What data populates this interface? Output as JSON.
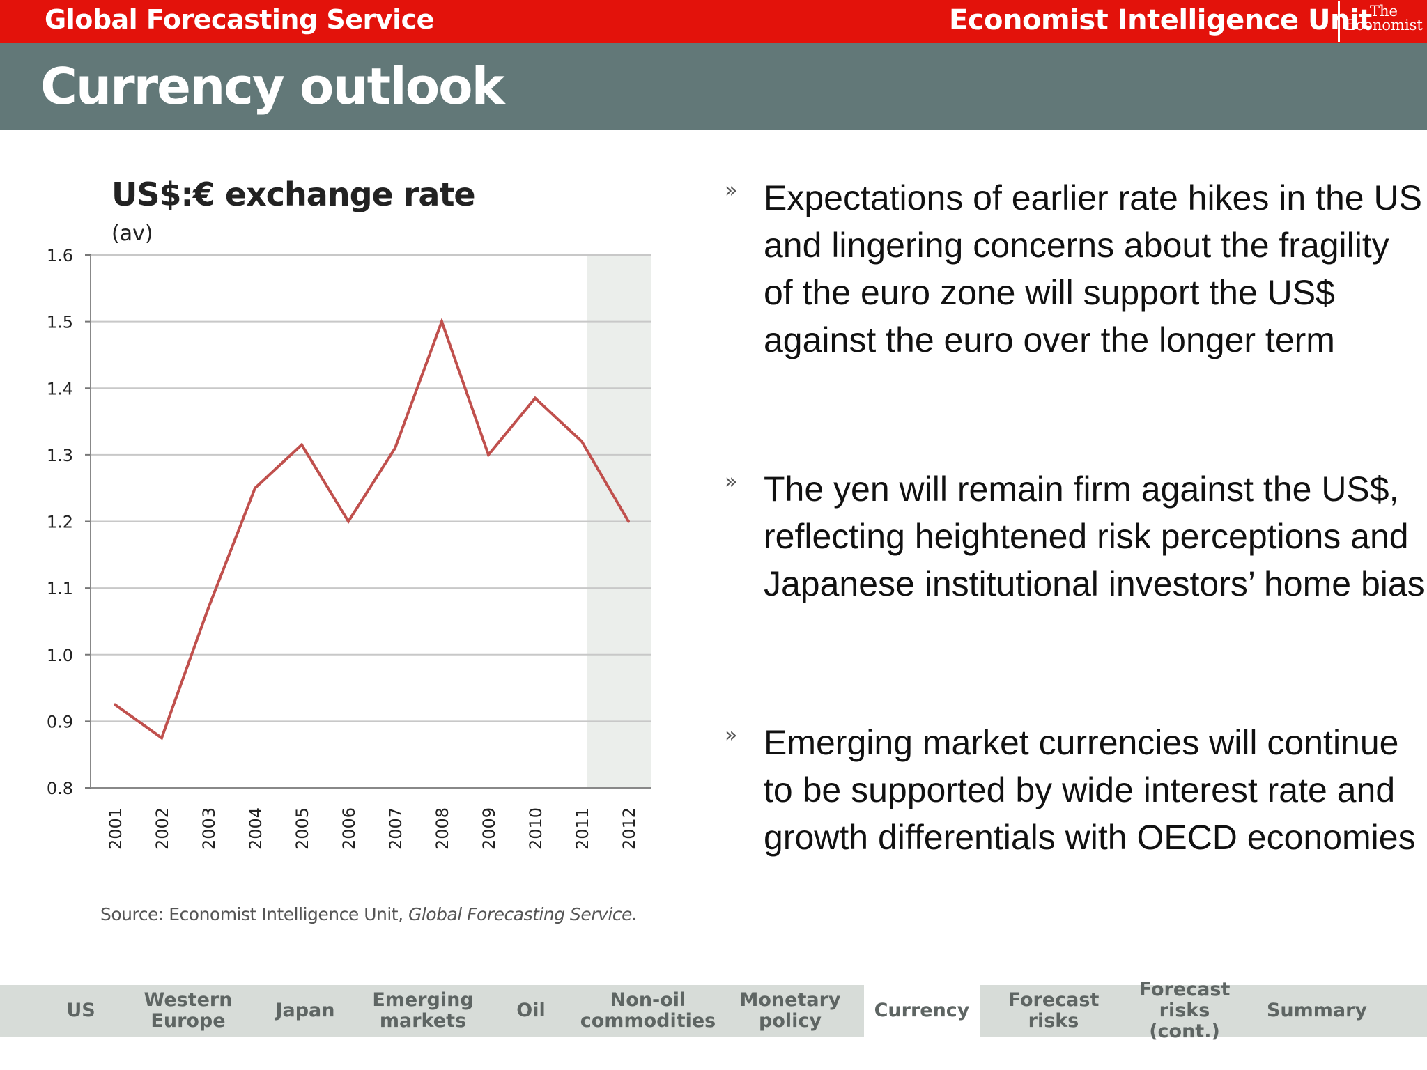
{
  "header": {
    "service": "Global Forecasting Service",
    "brand": "Economist Intelligence Unit",
    "logo_line1": "The",
    "logo_line2": "Economist"
  },
  "page_title": "Currency outlook",
  "chart_data": {
    "type": "line",
    "title": "US$:€ exchange rate",
    "subtitle": "(av)",
    "x": [
      "2001",
      "2002",
      "2003",
      "2004",
      "2005",
      "2006",
      "2007",
      "2008",
      "2009",
      "2010",
      "2011",
      "2012"
    ],
    "series": [
      {
        "values": [
          0.925,
          0.875,
          1.07,
          1.25,
          1.315,
          1.2,
          1.31,
          1.5,
          1.3,
          1.385,
          1.32,
          1.2
        ]
      }
    ],
    "ylim": [
      0.8,
      1.6
    ],
    "yticks": [
      "0.8",
      "0.9",
      "1.0",
      "1.1",
      "1.2",
      "1.3",
      "1.4",
      "1.5",
      "1.6"
    ],
    "forecast_shade_from": "2011",
    "line_color": "#c0504d",
    "grid": true,
    "source_prefix": "Source: Economist Intelligence Unit, ",
    "source_italic": "Global Forecasting Service."
  },
  "bullets": [
    {
      "text": "Expectations of earlier rate hikes in the US and lingering concerns about the fragility of the euro zone will support the US$ against the euro over the longer term"
    },
    {
      "text": "The yen will remain firm against the US$, reflecting heightened risk perceptions and Japanese institutional investors’ home bias"
    },
    {
      "text": "Emerging market currencies will continue to be supported by wide interest rate and growth differentials with OECD economies"
    }
  ],
  "bullet_glyph": "»",
  "nav": [
    {
      "line1": "US",
      "line2": ""
    },
    {
      "line1": "Western",
      "line2": "Europe"
    },
    {
      "line1": "Japan",
      "line2": ""
    },
    {
      "line1": "Emerging",
      "line2": "markets"
    },
    {
      "line1": "Oil",
      "line2": ""
    },
    {
      "line1": "Non-oil",
      "line2": "commodities"
    },
    {
      "line1": "Monetary",
      "line2": "policy"
    },
    {
      "line1": "Currency",
      "line2": ""
    },
    {
      "line1": "Forecast",
      "line2": "risks"
    },
    {
      "line1": "Forecast",
      "line2": "risks (cont.)"
    },
    {
      "line1": "Summary",
      "line2": ""
    }
  ],
  "nav_active": "Currency"
}
